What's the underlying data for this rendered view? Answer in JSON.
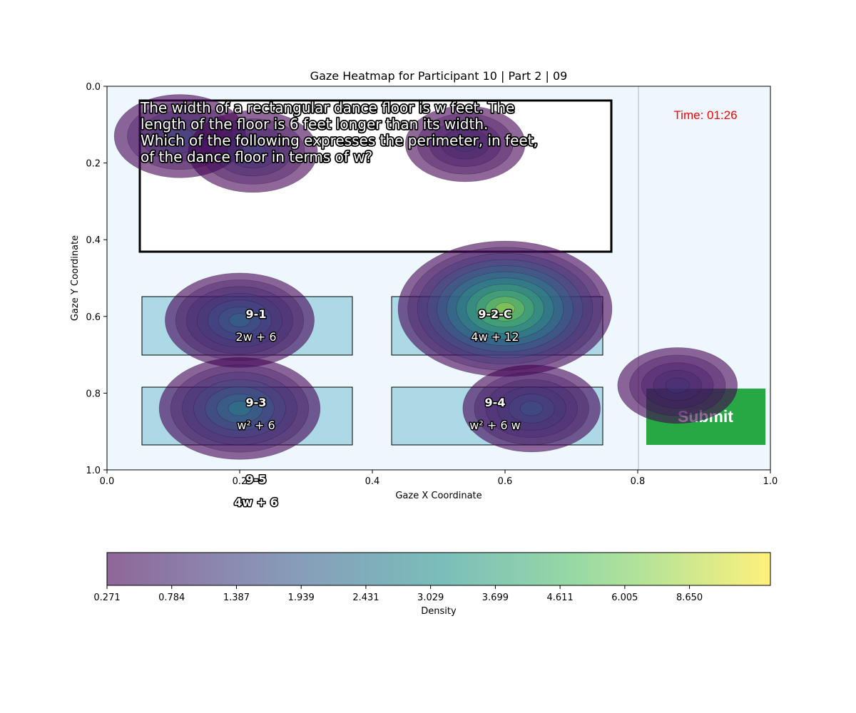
{
  "chart_data": {
    "type": "heatmap",
    "title": "Gaze Heatmap for Participant 10 | Part 2 | 09",
    "xlabel": "Gaze X Coordinate",
    "ylabel": "Gaze Y Coordinate",
    "xlim": [
      0.0,
      1.0
    ],
    "ylim": [
      1.0,
      0.0
    ],
    "x_ticks": [
      "0.0",
      "0.2",
      "0.4",
      "0.6",
      "0.8",
      "1.0"
    ],
    "y_ticks": [
      "0.0",
      "0.2",
      "0.4",
      "0.6",
      "0.8",
      "1.0"
    ],
    "y_axis_inverted": true,
    "grid": false,
    "colormap": "viridis",
    "colorbar": {
      "label": "Density",
      "orientation": "horizontal",
      "tick_labels": [
        "0.271",
        "0.784",
        "1.387",
        "1.939",
        "2.431",
        "3.029",
        "3.699",
        "4.611",
        "6.005",
        "8.650"
      ]
    },
    "density_peaks": [
      {
        "x": 0.11,
        "y": 0.13,
        "weight": 0.3
      },
      {
        "x": 0.22,
        "y": 0.17,
        "weight": 0.28
      },
      {
        "x": 0.54,
        "y": 0.15,
        "weight": 0.2
      },
      {
        "x": 0.2,
        "y": 0.61,
        "weight": 0.45
      },
      {
        "x": 0.2,
        "y": 0.84,
        "weight": 0.55
      },
      {
        "x": 0.6,
        "y": 0.58,
        "weight": 1.0
      },
      {
        "x": 0.64,
        "y": 0.84,
        "weight": 0.35
      },
      {
        "x": 0.86,
        "y": 0.78,
        "weight": 0.2
      }
    ]
  },
  "question": {
    "lines": [
      "The width of a rectangular dance floor is w feet. The",
      "length of the floor is 6 feet longer than its width.",
      "Which of the following expresses the perimeter, in feet,",
      "of the dance floor in terms of w?"
    ]
  },
  "timer": {
    "text": "Time: 01:26",
    "color": "#ff0000"
  },
  "submit": {
    "label": "Submit",
    "color": "#28a745"
  },
  "options": [
    {
      "id": "9-1",
      "text": "2w + 6"
    },
    {
      "id": "9-2-C",
      "text": "4w + 12"
    },
    {
      "id": "9-3",
      "text": "w² + 6"
    },
    {
      "id": "9-4",
      "text": "w² + 6 w"
    },
    {
      "id": "9-5",
      "text": "4w + 6"
    }
  ]
}
